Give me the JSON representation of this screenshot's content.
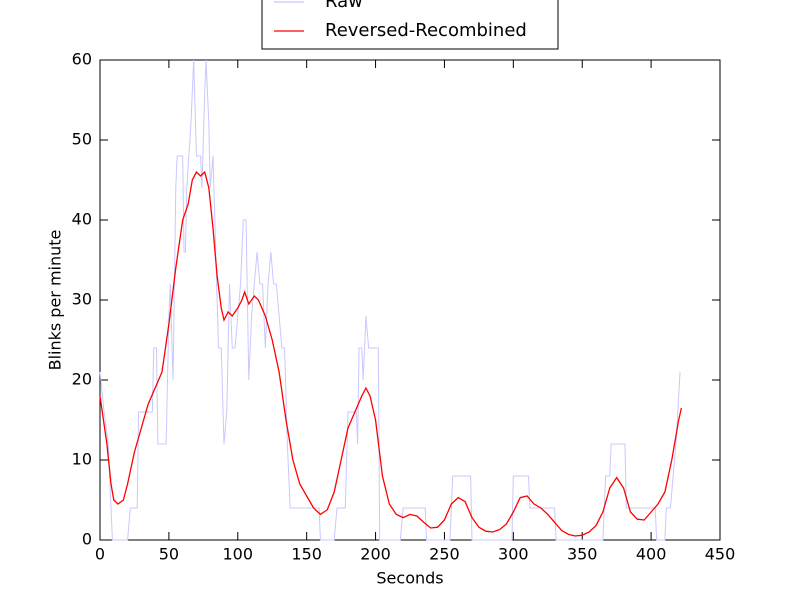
{
  "chart_data": {
    "type": "line",
    "xlabel": "Seconds",
    "ylabel": "Blinks per minute",
    "xlim": [
      0,
      450
    ],
    "xticks": [
      0,
      50,
      100,
      150,
      200,
      250,
      300,
      350,
      400,
      450
    ],
    "ylim": [
      0,
      60
    ],
    "yticks": [
      0,
      10,
      20,
      30,
      40,
      50,
      60
    ],
    "legend": "top",
    "series": [
      {
        "name": "Raw",
        "color": "#c8c8ff",
        "x": [
          0,
          3,
          6,
          8,
          9,
          20,
          22,
          27,
          28,
          38,
          39,
          41,
          42,
          48,
          50,
          51,
          53,
          55,
          56,
          60,
          61,
          62,
          63,
          66,
          68,
          70,
          73,
          74,
          76,
          77,
          79,
          80,
          82,
          84,
          86,
          88,
          90,
          92,
          94,
          96,
          98,
          100,
          102,
          104,
          106,
          108,
          110,
          112,
          114,
          116,
          118,
          120,
          122,
          124,
          126,
          128,
          130,
          132,
          134,
          136,
          138,
          159,
          160,
          170,
          172,
          178,
          180,
          186,
          187,
          188,
          190,
          191,
          193,
          195,
          202,
          203,
          218,
          220,
          236,
          237,
          254,
          256,
          269,
          270,
          299,
          300,
          311,
          312,
          330,
          331,
          365,
          367,
          370,
          371,
          381,
          382,
          403,
          404,
          410,
          411,
          414,
          416,
          418,
          421
        ],
        "values": [
          21,
          16,
          12,
          4,
          0,
          0,
          4,
          4,
          16,
          16,
          24,
          24,
          12,
          12,
          28,
          32,
          20,
          44,
          48,
          48,
          36,
          36,
          44,
          52,
          60,
          48,
          48,
          44,
          56,
          60,
          52,
          44,
          48,
          36,
          24,
          24,
          12,
          16,
          32,
          24,
          24,
          28,
          32,
          40,
          40,
          20,
          28,
          32,
          36,
          32,
          32,
          24,
          32,
          36,
          32,
          32,
          28,
          24,
          24,
          12,
          4,
          4,
          0,
          0,
          4,
          4,
          16,
          16,
          12,
          24,
          24,
          20,
          28,
          24,
          24,
          0,
          0,
          4,
          4,
          0,
          0,
          8,
          8,
          0,
          0,
          8,
          8,
          4,
          4,
          0,
          0,
          8,
          8,
          12,
          12,
          4,
          4,
          0,
          0,
          4,
          4,
          8,
          12,
          21
        ]
      },
      {
        "name": "Reversed-Recombined",
        "color": "#ff0000",
        "x": [
          0,
          5,
          8,
          10,
          13,
          17,
          20,
          25,
          30,
          35,
          40,
          45,
          50,
          55,
          60,
          64,
          67,
          70,
          73,
          76,
          79,
          82,
          85,
          88,
          90,
          93,
          96,
          100,
          103,
          105,
          108,
          112,
          115,
          120,
          125,
          130,
          135,
          140,
          145,
          150,
          155,
          160,
          165,
          170,
          175,
          180,
          185,
          190,
          193,
          196,
          200,
          205,
          210,
          215,
          220,
          225,
          230,
          235,
          240,
          245,
          250,
          255,
          260,
          265,
          270,
          275,
          280,
          285,
          290,
          295,
          300,
          305,
          310,
          315,
          320,
          325,
          330,
          335,
          340,
          345,
          350,
          355,
          360,
          365,
          370,
          375,
          380,
          385,
          390,
          395,
          400,
          405,
          410,
          415,
          420,
          422
        ],
        "values": [
          18,
          12,
          7,
          5,
          4.5,
          5,
          7,
          11,
          14,
          17,
          19,
          21,
          27,
          34,
          40,
          42,
          45,
          46,
          45.5,
          46,
          44,
          39,
          33,
          29,
          27.5,
          28.5,
          28,
          29,
          30,
          31,
          29.5,
          30.5,
          30,
          28,
          25,
          21,
          15,
          10,
          7,
          5.5,
          4,
          3.2,
          3.8,
          6,
          10,
          14,
          16,
          18,
          19,
          18,
          15,
          8,
          4.5,
          3.2,
          2.8,
          3.2,
          3,
          2.2,
          1.5,
          1.6,
          2.5,
          4.5,
          5.3,
          4.8,
          2.8,
          1.6,
          1.1,
          1,
          1.3,
          2,
          3.5,
          5.3,
          5.5,
          4.5,
          4,
          3.2,
          2.2,
          1.2,
          0.7,
          0.5,
          0.6,
          1,
          1.8,
          3.5,
          6.5,
          7.8,
          6.5,
          3.5,
          2.6,
          2.5,
          3.5,
          4.5,
          6,
          10,
          15,
          16.5
        ]
      }
    ]
  }
}
